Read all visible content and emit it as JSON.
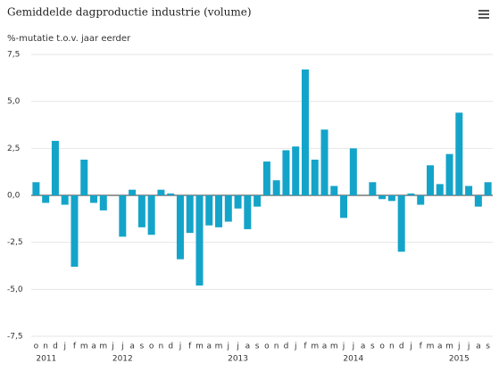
{
  "chart_data": {
    "type": "bar",
    "title": "Gemiddelde dagproductie industrie (volume)",
    "y_label": "%-mutatie t.o.v. jaar eerder",
    "color": "#14a4c9",
    "grid": true,
    "categories": [
      "o",
      "n",
      "d",
      "j",
      "f",
      "m",
      "a",
      "m",
      "j",
      "j",
      "a",
      "s",
      "o",
      "n",
      "d",
      "j",
      "f",
      "m",
      "a",
      "m",
      "j",
      "j",
      "a",
      "s",
      "o",
      "n",
      "d",
      "j",
      "f",
      "m",
      "a",
      "m",
      "j",
      "j",
      "a",
      "s",
      "o",
      "n",
      "d",
      "j",
      "f",
      "m",
      "a",
      "m",
      "j",
      "j",
      "a",
      "s"
    ],
    "year_labels": [
      "2011",
      null,
      null,
      null,
      null,
      null,
      null,
      null,
      null,
      "2012",
      null,
      null,
      null,
      null,
      null,
      null,
      null,
      null,
      null,
      null,
      null,
      "2013",
      null,
      null,
      null,
      null,
      null,
      null,
      null,
      null,
      null,
      null,
      null,
      "2014",
      null,
      null,
      null,
      null,
      null,
      null,
      null,
      null,
      null,
      null,
      "2015",
      null,
      null,
      null
    ],
    "values": [
      0.7,
      -0.4,
      2.9,
      -0.5,
      -3.8,
      1.9,
      -0.4,
      -0.8,
      0,
      -2.2,
      0.3,
      -1.7,
      -2.1,
      0.3,
      0.1,
      -3.4,
      -2.0,
      -4.8,
      -1.6,
      -1.7,
      -1.4,
      -0.7,
      -1.8,
      -0.6,
      1.8,
      0.8,
      2.4,
      2.6,
      6.7,
      1.9,
      3.5,
      0.5,
      -1.2,
      2.5,
      0,
      0.7,
      -0.2,
      -0.3,
      -3.0,
      0.1,
      -0.5,
      1.6,
      0.6,
      2.2,
      4.4,
      0.5,
      -0.6,
      0.7
    ],
    "ylim": [
      -7.5,
      7.5
    ],
    "yticks": [
      {
        "value": -7.5,
        "label": "-7,5"
      },
      {
        "value": -5,
        "label": "-5,0"
      },
      {
        "value": -2.5,
        "label": "-2,5"
      },
      {
        "value": 0,
        "label": "0,0"
      },
      {
        "value": 2.5,
        "label": "2,5"
      },
      {
        "value": 5,
        "label": "5,0"
      },
      {
        "value": 7.5,
        "label": "7,5"
      }
    ]
  }
}
